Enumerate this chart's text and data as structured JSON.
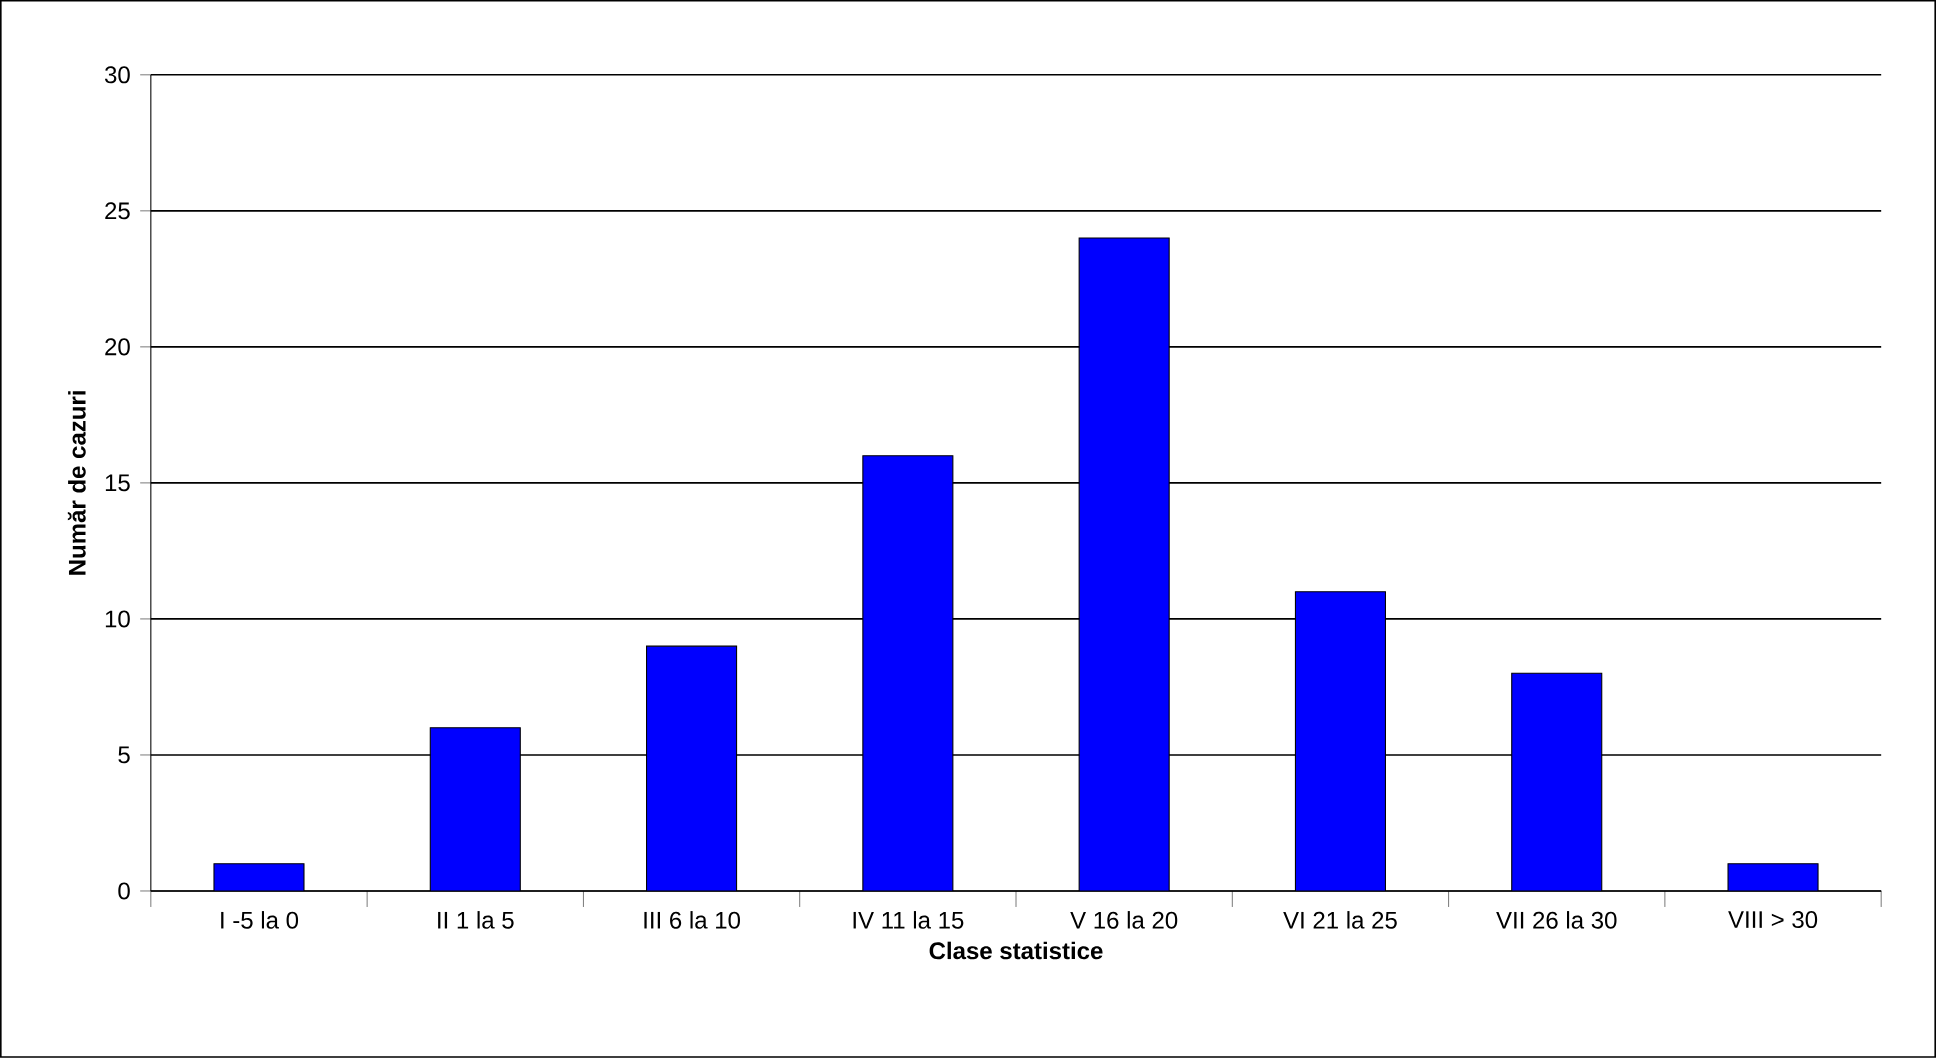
{
  "chart_data": {
    "type": "bar",
    "xlabel": "Clase statistice",
    "ylabel": "Număr de cazuri",
    "categories": [
      "I  -5  la  0",
      "II  1 la   5",
      "III  6 la 10",
      "IV 11 la 15",
      "V  16 la 20",
      "VI 21 la 25",
      "VII 26 la 30",
      "VIII > 30"
    ],
    "values": [
      1,
      6,
      9,
      16,
      24,
      11,
      8,
      1
    ],
    "color": "#0000ff",
    "ylim": [
      0,
      30
    ],
    "yticks": [
      0,
      5,
      10,
      15,
      20,
      25,
      30
    ],
    "grid": "y"
  }
}
